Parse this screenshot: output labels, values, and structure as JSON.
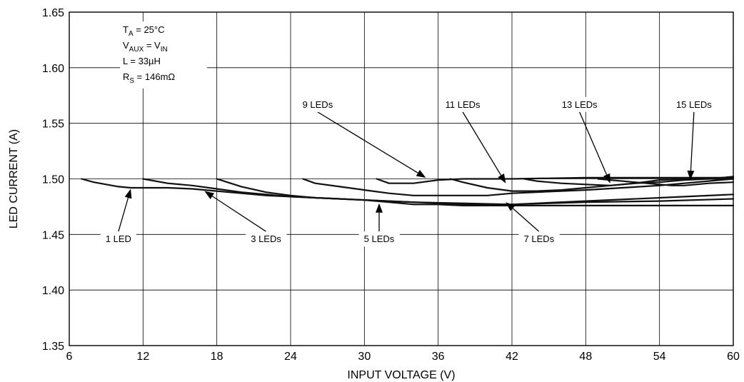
{
  "chart_data": {
    "type": "line",
    "xlabel": "INPUT VOLTAGE (V)",
    "ylabel": "LED CURRENT (A)",
    "xlim": [
      6,
      60
    ],
    "ylim": [
      1.35,
      1.65
    ],
    "xticks": [
      6,
      12,
      18,
      24,
      30,
      36,
      42,
      48,
      54,
      60
    ],
    "yticks": [
      1.35,
      1.4,
      1.45,
      1.5,
      1.55,
      1.6,
      1.65
    ],
    "xtick_labels": [
      "6",
      "12",
      "18",
      "24",
      "30",
      "36",
      "42",
      "48",
      "54",
      "60"
    ],
    "ytick_labels": [
      "1.35",
      "1.40",
      "1.45",
      "1.50",
      "1.55",
      "1.60",
      "1.65"
    ],
    "grid": true,
    "conditions": [
      {
        "main": "T",
        "sub": "A",
        "rest": " = 25°C"
      },
      {
        "main": "V",
        "sub": "AUX",
        "rest": " = V",
        "sub2": "IN"
      },
      {
        "main": "L = 33µH"
      },
      {
        "main": "R",
        "sub": "S",
        "rest": " = 146mΩ"
      }
    ],
    "series": [
      {
        "name": "1 LED",
        "x": [
          7,
          8,
          9,
          10,
          11,
          12,
          14,
          16,
          18,
          20,
          22,
          24,
          30,
          36,
          38,
          42,
          48,
          54,
          60
        ],
        "y": [
          1.5,
          1.497,
          1.495,
          1.493,
          1.492,
          1.492,
          1.492,
          1.491,
          1.489,
          1.487,
          1.485,
          1.484,
          1.481,
          1.478,
          1.477,
          1.477,
          1.48,
          1.483,
          1.486
        ],
        "label_at": [
          11,
          1.491
        ],
        "label_pos": [
          10,
          1.443
        ]
      },
      {
        "name": "3 LEDs",
        "x": [
          12,
          14,
          16,
          18,
          20,
          22,
          24,
          26,
          30,
          34,
          38,
          42,
          48,
          54,
          60
        ],
        "y": [
          1.5,
          1.496,
          1.494,
          1.491,
          1.488,
          1.486,
          1.484,
          1.483,
          1.481,
          1.479,
          1.478,
          1.477,
          1.479,
          1.48,
          1.482
        ],
        "label_at": [
          17,
          1.489
        ],
        "label_pos": [
          22,
          1.443
        ]
      },
      {
        "name": "5 LEDs",
        "x": [
          18,
          20,
          22,
          24,
          26,
          28,
          30,
          32,
          34,
          36,
          38,
          40,
          42,
          48,
          54,
          60
        ],
        "y": [
          1.5,
          1.493,
          1.488,
          1.485,
          1.483,
          1.482,
          1.481,
          1.479,
          1.477,
          1.477,
          1.476,
          1.476,
          1.476,
          1.476,
          1.476,
          1.476
        ],
        "label_at": [
          31.2,
          1.478
        ],
        "label_pos": [
          31.2,
          1.443
        ]
      },
      {
        "name": "7 LEDs",
        "x": [
          25,
          26,
          28,
          30,
          32,
          34,
          36,
          38,
          40,
          42,
          48,
          54,
          60
        ],
        "y": [
          1.5,
          1.496,
          1.493,
          1.49,
          1.487,
          1.485,
          1.485,
          1.485,
          1.485,
          1.487,
          1.49,
          1.494,
          1.5
        ],
        "label_at": [
          41.5,
          1.479
        ],
        "label_pos": [
          44.2,
          1.443
        ]
      },
      {
        "name": "9 LEDs",
        "x": [
          31,
          32,
          34,
          36,
          38,
          40,
          42,
          48,
          54,
          60
        ],
        "y": [
          1.5,
          1.496,
          1.496,
          1.499,
          1.5,
          1.5,
          1.5,
          1.501,
          1.501,
          1.501
        ],
        "label_at": [
          35,
          1.501
        ],
        "label_pos": [
          26.2,
          1.564
        ]
      },
      {
        "name": "11 LEDs",
        "x": [
          37,
          38,
          40,
          42,
          44,
          46,
          48,
          50,
          52,
          54,
          56,
          58,
          60
        ],
        "y": [
          1.5,
          1.497,
          1.492,
          1.489,
          1.489,
          1.49,
          1.492,
          1.494,
          1.496,
          1.497,
          1.499,
          1.5,
          1.502
        ],
        "label_at": [
          41.5,
          1.496
        ],
        "label_pos": [
          38,
          1.564
        ]
      },
      {
        "name": "13 LEDs",
        "x": [
          43,
          44,
          46,
          48,
          50,
          52,
          54,
          56,
          58,
          60
        ],
        "y": [
          1.5,
          1.498,
          1.496,
          1.495,
          1.494,
          1.496,
          1.499,
          1.5,
          1.5,
          1.5
        ],
        "label_at": [
          50,
          1.496
        ],
        "label_pos": [
          47.5,
          1.564
        ]
      },
      {
        "name": "15 LEDs",
        "x": [
          49,
          50,
          52,
          54,
          55,
          56,
          57,
          58,
          60
        ],
        "y": [
          1.5,
          1.499,
          1.497,
          1.495,
          1.494,
          1.494,
          1.495,
          1.496,
          1.497
        ],
        "label_at": [
          56.5,
          1.499
        ],
        "label_pos": [
          56.8,
          1.564
        ]
      }
    ]
  }
}
